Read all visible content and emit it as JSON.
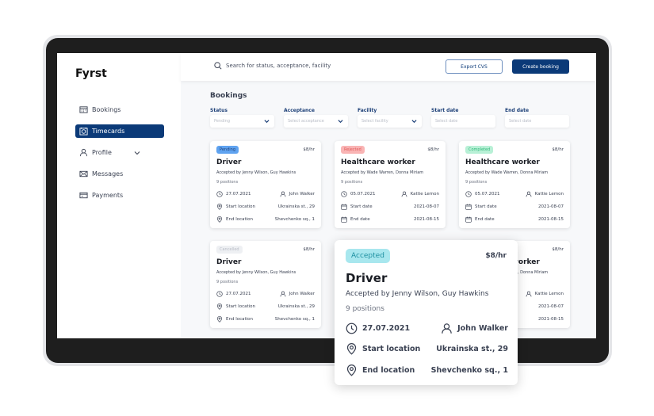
{
  "app": {
    "logo": "Fyrst"
  },
  "sidebar": {
    "items": [
      {
        "label": "Bookings",
        "icon": "calendar-grid-icon"
      },
      {
        "label": "Timecards",
        "icon": "timecard-icon",
        "active": true
      },
      {
        "label": "Profile",
        "icon": "user-icon"
      },
      {
        "label": "Messages",
        "icon": "mail-icon"
      },
      {
        "label": "Payments",
        "icon": "card-icon"
      }
    ]
  },
  "header": {
    "search_placeholder": "Search for status, acceptance, facility",
    "export_label": "Export CVS",
    "create_label": "Create booking"
  },
  "page": {
    "title": "Bookings"
  },
  "filters": [
    {
      "label": "Status",
      "value": "Pending",
      "dropdown": true
    },
    {
      "label": "Acceptance",
      "value": "Select acceptance",
      "dropdown": true
    },
    {
      "label": "Facility",
      "value": "Select facility",
      "dropdown": true
    },
    {
      "label": "Start date",
      "value": "Select date",
      "dropdown": false
    },
    {
      "label": "End date",
      "value": "Select date",
      "dropdown": false
    }
  ],
  "colors": {
    "primary": "#0b3a78",
    "pending_bg": "#5fa3f0",
    "rejected_bg": "#f9b4b4",
    "completed_bg": "#b8f0d6",
    "cancelled_bg": "#eef0f3",
    "accepted_bg": "#a8e7ee"
  },
  "cards": [
    {
      "status": "Pending",
      "rate": "$8/hr",
      "title": "Driver",
      "accepted": "Accepted by Jenny Wilson, Guy Hawkins",
      "positions": "9 positions",
      "date": "27.07.2021",
      "person": "John Walker",
      "r2l": "Start location",
      "r2v": "Ukrainska st., 29",
      "r3l": "End location",
      "r3v": "Shevchenko sq., 1"
    },
    {
      "status": "Rejected",
      "rate": "$8/hr",
      "title": "Healthcare worker",
      "accepted": "Accepted by Wade Warren, Donna Miriam",
      "positions": "9 positions",
      "date": "05.07.2021",
      "person": "Kattie Lemon",
      "r2l": "Start date",
      "r2v": "2021-08-07",
      "r3l": "End date",
      "r3v": "2021-08-15"
    },
    {
      "status": "Completed",
      "rate": "$8/hr",
      "title": "Healthcare worker",
      "accepted": "Accepted by Wade Warren, Donna Miriam",
      "positions": "9 positions",
      "date": "05.07.2021",
      "person": "Kattie Lemon",
      "r2l": "Start date",
      "r2v": "2021-08-07",
      "r3l": "End date",
      "r3v": "2021-08-15"
    },
    {
      "status": "Cancelled",
      "rate": "$8/hr",
      "title": "Driver",
      "accepted": "Accepted by Jenny Wilson, Guy Hawkins",
      "positions": "9 positions",
      "date": "27.07.2021",
      "person": "John Walker",
      "r2l": "Start location",
      "r2v": "Ukrainska st., 29",
      "r3l": "End location",
      "r3v": "Shevchenko sq., 1"
    },
    {
      "status": "",
      "rate": "$8/hr",
      "title": "Healthcare worker",
      "accepted": "Accepted by Wade Warren, Donna Miriam",
      "positions": "",
      "date": "",
      "person": "Kattie Lemon",
      "r2l": "",
      "r2v": "2021-08-07",
      "r3l": "",
      "r3v": "2021-08-15"
    }
  ],
  "overlay_card": {
    "status": "Accepted",
    "rate": "$8/hr",
    "title": "Driver",
    "accepted": "Accepted by Jenny Wilson, Guy Hawkins",
    "positions": "9 positions",
    "date": "27.07.2021",
    "person": "John Walker",
    "r2l": "Start location",
    "r2v": "Ukrainska st., 29",
    "r3l": "End location",
    "r3v": "Shevchenko sq., 1"
  }
}
